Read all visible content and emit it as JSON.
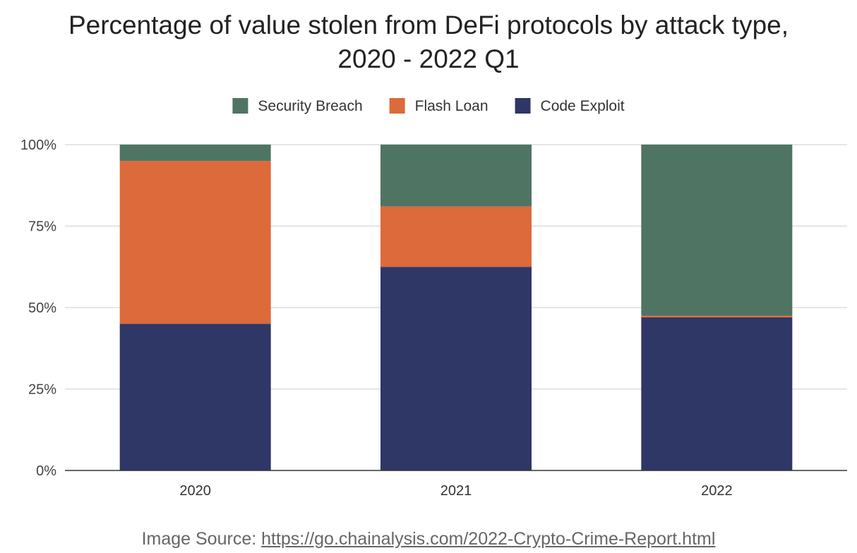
{
  "chart_data": {
    "type": "bar",
    "stacked": true,
    "title_lines": [
      "Percentage of value stolen from DeFi protocols by attack type,",
      "2020 - 2022 Q1"
    ],
    "categories": [
      "2020",
      "2021",
      "2022"
    ],
    "series": [
      {
        "name": "Code Exploit",
        "color": "#2f3766",
        "values": [
          45,
          62.5,
          47
        ]
      },
      {
        "name": "Flash Loan",
        "color": "#dc6a3b",
        "values": [
          50,
          18.5,
          0.5
        ]
      },
      {
        "name": "Security Breach",
        "color": "#4f7464",
        "values": [
          5,
          19,
          52.5
        ]
      }
    ],
    "legend": {
      "position": "top",
      "order": [
        "Security Breach",
        "Flash Loan",
        "Code Exploit"
      ]
    },
    "ylim": [
      0,
      100
    ],
    "yticks": [
      "0%",
      "25%",
      "50%",
      "75%",
      "100%"
    ],
    "grid": true,
    "xlabel": "",
    "ylabel": ""
  },
  "source": {
    "prefix": "Image Source: ",
    "link_text": "https://go.chainalysis.com/2022-Crypto-Crime-Report.html"
  }
}
